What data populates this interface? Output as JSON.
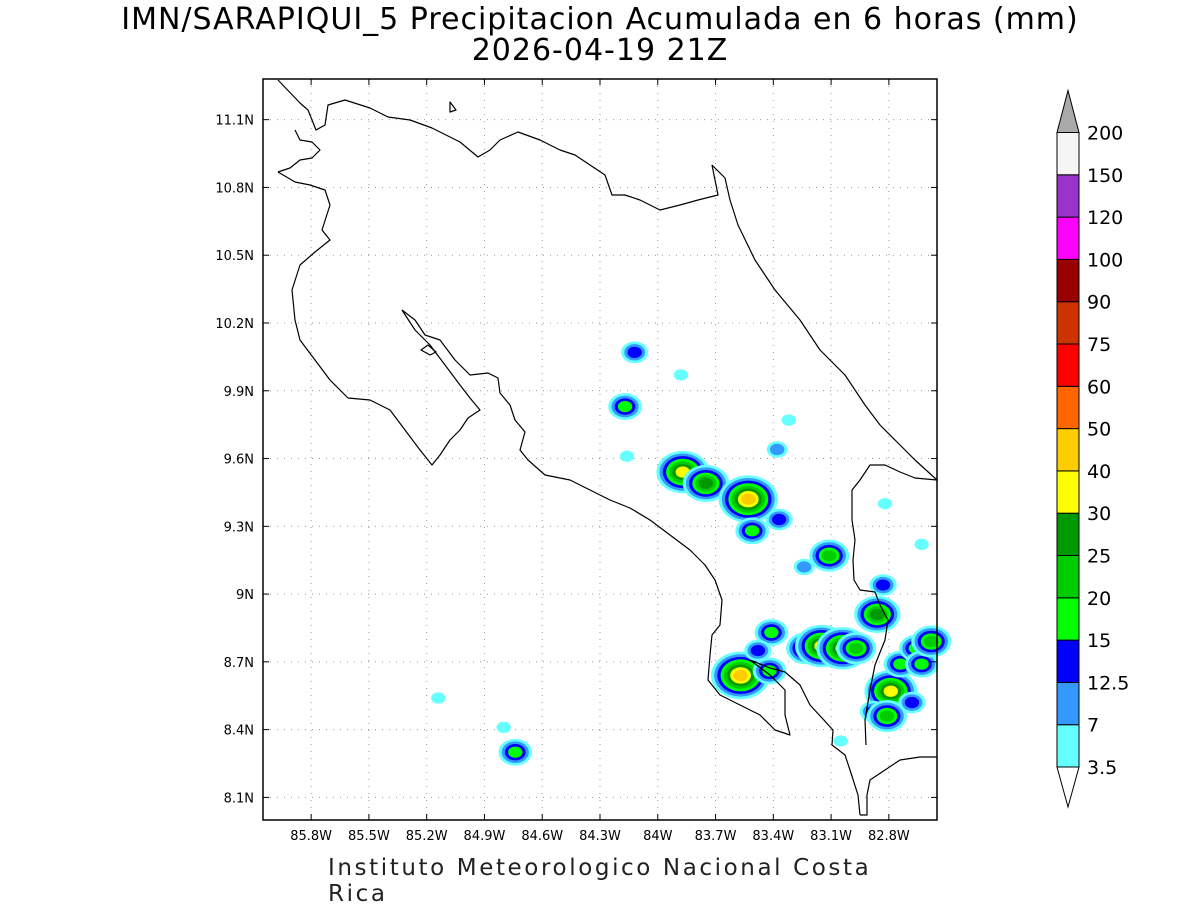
{
  "title": {
    "line1": "IMN/SARAPIQUI_5 Precipitacion Acumulada en 6 horas (mm)",
    "line2": "2026-04-19 21Z"
  },
  "footer": "Instituto Meteorologico Nacional Costa Rica",
  "map": {
    "region": "Costa Rica",
    "lon_range": [
      -86.05,
      -82.55
    ],
    "lat_range": [
      8.0,
      11.28
    ],
    "grid": true,
    "x_ticks": [
      {
        "lon": -85.8,
        "label": "85.8W"
      },
      {
        "lon": -85.5,
        "label": "85.5W"
      },
      {
        "lon": -85.2,
        "label": "85.2W"
      },
      {
        "lon": -84.9,
        "label": "84.9W"
      },
      {
        "lon": -84.6,
        "label": "84.6W"
      },
      {
        "lon": -84.3,
        "label": "84.3W"
      },
      {
        "lon": -84.0,
        "label": "84W"
      },
      {
        "lon": -83.7,
        "label": "83.7W"
      },
      {
        "lon": -83.4,
        "label": "83.4W"
      },
      {
        "lon": -83.1,
        "label": "83.1W"
      },
      {
        "lon": -82.8,
        "label": "82.8W"
      }
    ],
    "y_ticks": [
      {
        "lat": 11.1,
        "label": "11.1N"
      },
      {
        "lat": 10.8,
        "label": "10.8N"
      },
      {
        "lat": 10.5,
        "label": "10.5N"
      },
      {
        "lat": 10.2,
        "label": "10.2N"
      },
      {
        "lat": 9.9,
        "label": "9.9N"
      },
      {
        "lat": 9.6,
        "label": "9.6N"
      },
      {
        "lat": 9.3,
        "label": "9.3N"
      },
      {
        "lat": 9.0,
        "label": "9N"
      },
      {
        "lat": 8.7,
        "label": "8.7N"
      },
      {
        "lat": 8.4,
        "label": "8.4N"
      },
      {
        "lat": 8.1,
        "label": "8.1N"
      }
    ],
    "precip_cells": [
      {
        "lon": -84.12,
        "lat": 10.07,
        "level": 12.5
      },
      {
        "lon": -84.17,
        "lat": 9.83,
        "level": 15
      },
      {
        "lon": -83.87,
        "lat": 9.54,
        "level": 30
      },
      {
        "lon": -83.75,
        "lat": 9.49,
        "level": 25
      },
      {
        "lon": -83.53,
        "lat": 9.42,
        "level": 40
      },
      {
        "lon": -83.51,
        "lat": 9.28,
        "level": 15
      },
      {
        "lon": -83.37,
        "lat": 9.33,
        "level": 12.5
      },
      {
        "lon": -83.11,
        "lat": 9.17,
        "level": 20
      },
      {
        "lon": -83.24,
        "lat": 9.12,
        "level": 7
      },
      {
        "lon": -82.86,
        "lat": 8.91,
        "level": 25
      },
      {
        "lon": -82.83,
        "lat": 9.04,
        "level": 12.5
      },
      {
        "lon": -83.41,
        "lat": 8.83,
        "level": 15
      },
      {
        "lon": -83.57,
        "lat": 8.64,
        "level": 40
      },
      {
        "lon": -83.48,
        "lat": 8.75,
        "level": 12.5
      },
      {
        "lon": -83.42,
        "lat": 8.66,
        "level": 15
      },
      {
        "lon": -83.23,
        "lat": 8.76,
        "level": 20
      },
      {
        "lon": -83.15,
        "lat": 8.77,
        "level": 30
      },
      {
        "lon": -83.04,
        "lat": 8.76,
        "level": 30
      },
      {
        "lon": -82.97,
        "lat": 8.76,
        "level": 20
      },
      {
        "lon": -82.79,
        "lat": 8.57,
        "level": 30
      },
      {
        "lon": -82.74,
        "lat": 8.69,
        "level": 15
      },
      {
        "lon": -82.66,
        "lat": 8.76,
        "level": 15
      },
      {
        "lon": -82.63,
        "lat": 8.69,
        "level": 15
      },
      {
        "lon": -82.58,
        "lat": 8.79,
        "level": 20
      },
      {
        "lon": -82.88,
        "lat": 8.48,
        "level": 12.5
      },
      {
        "lon": -82.81,
        "lat": 8.46,
        "level": 20
      },
      {
        "lon": -82.68,
        "lat": 8.52,
        "level": 12.5
      },
      {
        "lon": -84.74,
        "lat": 8.3,
        "level": 15
      },
      {
        "lon": -84.8,
        "lat": 8.41,
        "level": 3.5
      },
      {
        "lon": -85.14,
        "lat": 8.54,
        "level": 3.5
      },
      {
        "lon": -83.88,
        "lat": 9.97,
        "level": 3.5
      },
      {
        "lon": -83.32,
        "lat": 9.77,
        "level": 3.5
      },
      {
        "lon": -84.16,
        "lat": 9.61,
        "level": 3.5
      },
      {
        "lon": -83.38,
        "lat": 9.64,
        "level": 7
      },
      {
        "lon": -82.82,
        "lat": 9.4,
        "level": 3.5
      },
      {
        "lon": -83.05,
        "lat": 8.35,
        "level": 3.5
      },
      {
        "lon": -82.63,
        "lat": 9.22,
        "level": 3.5
      }
    ]
  },
  "colorbar": {
    "levels": [
      {
        "label": "3.5",
        "color": "#66ffff"
      },
      {
        "label": "7",
        "color": "#3399ff"
      },
      {
        "label": "12.5",
        "color": "#0000ff"
      },
      {
        "label": "15",
        "color": "#00ff00"
      },
      {
        "label": "20",
        "color": "#00cc00"
      },
      {
        "label": "25",
        "color": "#009900"
      },
      {
        "label": "30",
        "color": "#ffff00"
      },
      {
        "label": "40",
        "color": "#ffcc00"
      },
      {
        "label": "50",
        "color": "#ff6600"
      },
      {
        "label": "60",
        "color": "#ff0000"
      },
      {
        "label": "75",
        "color": "#cc3300"
      },
      {
        "label": "90",
        "color": "#990000"
      },
      {
        "label": "100",
        "color": "#ff00ff"
      },
      {
        "label": "120",
        "color": "#9933cc"
      },
      {
        "label": "150",
        "color": "#f5f5f5"
      },
      {
        "label": "200",
        "color": "#aaaaaa"
      }
    ]
  }
}
